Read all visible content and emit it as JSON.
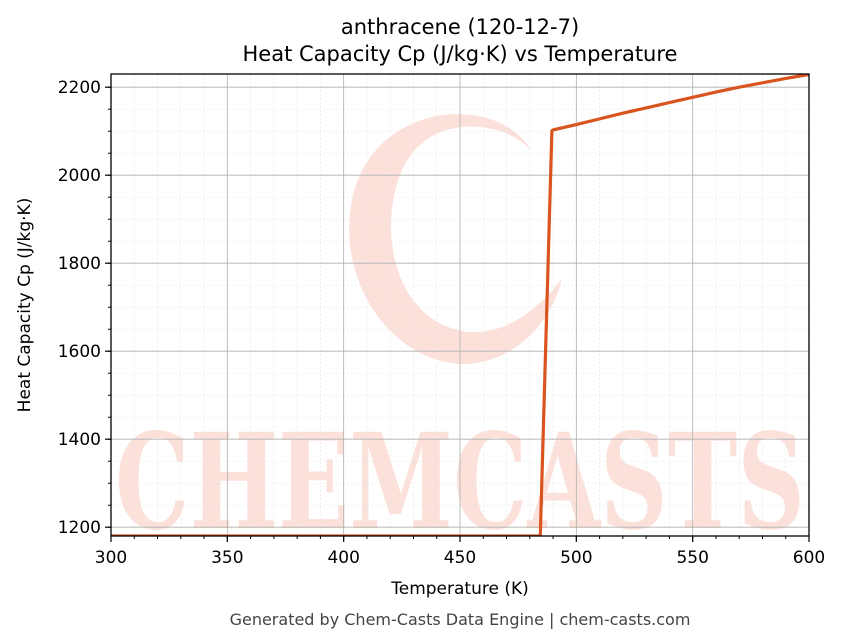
{
  "chart_data": {
    "type": "line",
    "title": "anthracene (120-12-7)",
    "subtitle": "Heat Capacity Cp (J/kg·K) vs Temperature",
    "xlabel": "Temperature (K)",
    "ylabel": "Heat Capacity Cp (J/kg·K)",
    "xlim": [
      300,
      600
    ],
    "ylim": [
      1180,
      2230
    ],
    "xticks": [
      300,
      350,
      400,
      450,
      500,
      550,
      600
    ],
    "yticks": [
      1200,
      1400,
      1600,
      1800,
      2000,
      2200
    ],
    "grid": true,
    "legend": "none",
    "line_color": "#d9541e",
    "series": [
      {
        "x": [
          300,
          484.5,
          489.5,
          490,
          500,
          510,
          520,
          530,
          540,
          550,
          560,
          570,
          580,
          590,
          600
        ],
        "y": [
          1180,
          1180,
          2101,
          2103,
          2115,
          2128,
          2141,
          2153,
          2165,
          2177,
          2189,
          2200,
          2210,
          2220,
          2229
        ]
      }
    ]
  },
  "watermark": {
    "text": "CHEMCASTS",
    "color": "#fcdcd4"
  },
  "footer": {
    "text": "Generated by Chem-Casts Data Engine | chem-casts.com"
  }
}
